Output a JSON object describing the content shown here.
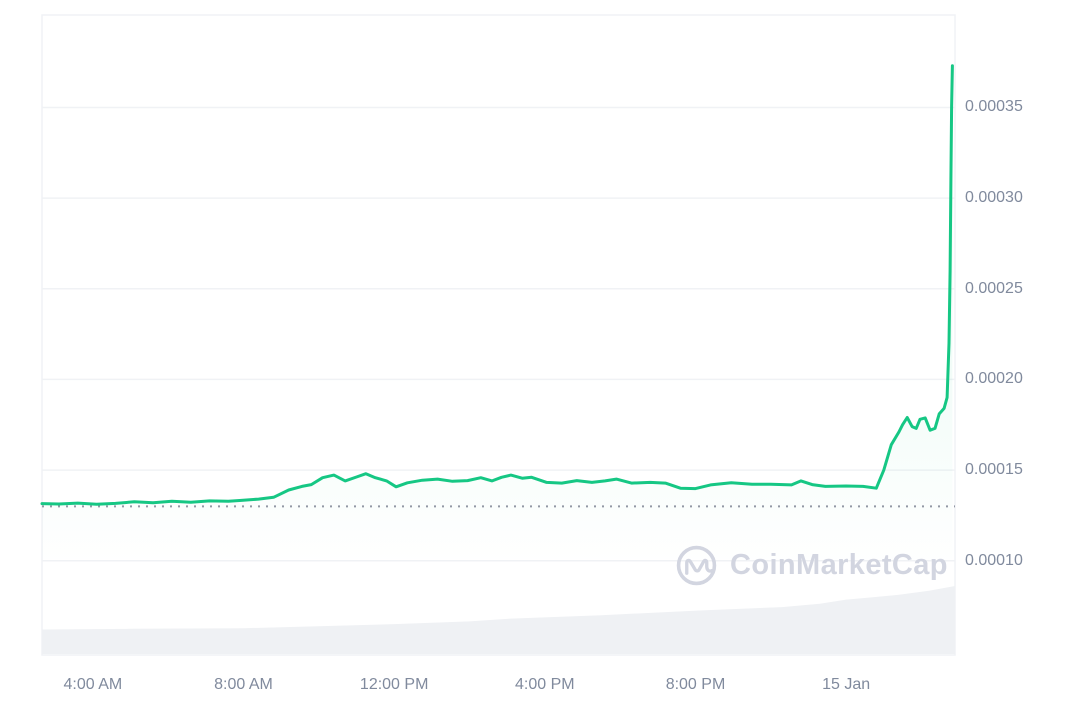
{
  "watermark": {
    "text": "CoinMarketCap"
  },
  "colors": {
    "line": "#16c784",
    "area_fill_top": "rgba(22,199,132,0.14)",
    "grid": "#f0f2f5",
    "axis_text": "#808a9d",
    "volume_fill": "#eff1f4",
    "baseline_dots": "#9298a5",
    "watermark": "#d2d5e0",
    "background": "#ffffff"
  },
  "chart_data": {
    "type": "line",
    "title": "",
    "xlabel": "",
    "ylabel": "",
    "grid": "horizontal-only",
    "legend": "none",
    "x_axis": {
      "start_hour": 2.65,
      "end_hour": 26.89,
      "ticks": [
        {
          "hour": 4,
          "label": "4:00 AM"
        },
        {
          "hour": 8,
          "label": "8:00 AM"
        },
        {
          "hour": 12,
          "label": "12:00 PM"
        },
        {
          "hour": 16,
          "label": "4:00 PM"
        },
        {
          "hour": 20,
          "label": "8:00 PM"
        },
        {
          "hour": 24,
          "label": "15 Jan"
        }
      ]
    },
    "y_axis": {
      "min": 4.8e-05,
      "max": 0.000401,
      "ticks": [
        {
          "value": 0.00035,
          "label": "0.00035"
        },
        {
          "value": 0.0003,
          "label": "0.00030"
        },
        {
          "value": 0.00025,
          "label": "0.00025"
        },
        {
          "value": 0.0002,
          "label": "0.00020"
        },
        {
          "value": 0.00015,
          "label": "0.00015"
        },
        {
          "value": 0.0001,
          "label": "0.00010"
        }
      ]
    },
    "previous_close_baseline": 0.00013,
    "series": [
      {
        "name": "price",
        "points": [
          [
            2.65,
            0.0001315
          ],
          [
            3.1,
            0.0001313
          ],
          [
            3.6,
            0.0001318
          ],
          [
            4.1,
            0.0001312
          ],
          [
            4.6,
            0.0001316
          ],
          [
            5.1,
            0.0001325
          ],
          [
            5.6,
            0.000132
          ],
          [
            6.1,
            0.0001328
          ],
          [
            6.6,
            0.0001322
          ],
          [
            7.1,
            0.000133
          ],
          [
            7.6,
            0.0001328
          ],
          [
            7.9,
            0.0001332
          ],
          [
            8.4,
            0.000134
          ],
          [
            8.8,
            0.000135
          ],
          [
            9.2,
            0.000139
          ],
          [
            9.55,
            0.000141
          ],
          [
            9.8,
            0.000142
          ],
          [
            10.1,
            0.0001458
          ],
          [
            10.4,
            0.0001472
          ],
          [
            10.7,
            0.000144
          ],
          [
            11.0,
            0.0001462
          ],
          [
            11.25,
            0.000148
          ],
          [
            11.5,
            0.0001458
          ],
          [
            11.8,
            0.000144
          ],
          [
            12.05,
            0.0001408
          ],
          [
            12.35,
            0.000143
          ],
          [
            12.75,
            0.0001444
          ],
          [
            13.15,
            0.000145
          ],
          [
            13.55,
            0.0001438
          ],
          [
            13.95,
            0.0001442
          ],
          [
            14.3,
            0.0001458
          ],
          [
            14.6,
            0.000144
          ],
          [
            14.85,
            0.000146
          ],
          [
            15.1,
            0.0001472
          ],
          [
            15.4,
            0.0001455
          ],
          [
            15.65,
            0.000146
          ],
          [
            16.05,
            0.0001432
          ],
          [
            16.45,
            0.0001428
          ],
          [
            16.85,
            0.0001442
          ],
          [
            17.25,
            0.0001432
          ],
          [
            17.6,
            0.000144
          ],
          [
            17.9,
            0.000145
          ],
          [
            18.3,
            0.0001428
          ],
          [
            18.8,
            0.0001432
          ],
          [
            19.2,
            0.0001428
          ],
          [
            19.6,
            0.00014
          ],
          [
            20.0,
            0.0001398
          ],
          [
            20.4,
            0.0001418
          ],
          [
            20.95,
            0.000143
          ],
          [
            21.5,
            0.0001422
          ],
          [
            22.0,
            0.0001422
          ],
          [
            22.55,
            0.0001418
          ],
          [
            22.8,
            0.000144
          ],
          [
            23.1,
            0.000142
          ],
          [
            23.45,
            0.000141
          ],
          [
            24.0,
            0.0001412
          ],
          [
            24.45,
            0.000141
          ],
          [
            24.8,
            0.00014
          ],
          [
            25.0,
            0.00015
          ],
          [
            25.2,
            0.000164
          ],
          [
            25.4,
            0.000171
          ],
          [
            25.5,
            0.000175
          ],
          [
            25.62,
            0.000179
          ],
          [
            25.75,
            0.000174
          ],
          [
            25.86,
            0.000173
          ],
          [
            25.96,
            0.000178
          ],
          [
            26.1,
            0.0001788
          ],
          [
            26.23,
            0.000172
          ],
          [
            26.36,
            0.000173
          ],
          [
            26.47,
            0.000181
          ],
          [
            26.6,
            0.000184
          ],
          [
            26.68,
            0.00019
          ],
          [
            26.73,
            0.00022
          ],
          [
            26.76,
            0.00026
          ],
          [
            26.78,
            0.00031
          ],
          [
            26.8,
            0.00035
          ],
          [
            26.82,
            0.000373
          ]
        ]
      }
    ],
    "volume_area": {
      "note": "relative heights 0-1 of bottom gray volume band",
      "points": [
        [
          2.65,
          0.36
        ],
        [
          5.0,
          0.37
        ],
        [
          8.0,
          0.38
        ],
        [
          9.5,
          0.4
        ],
        [
          12.0,
          0.44
        ],
        [
          14.0,
          0.48
        ],
        [
          15.1,
          0.52
        ],
        [
          17.5,
          0.57
        ],
        [
          20.1,
          0.64
        ],
        [
          22.3,
          0.69
        ],
        [
          23.3,
          0.74
        ],
        [
          24.0,
          0.8
        ],
        [
          24.6,
          0.83
        ],
        [
          25.4,
          0.87
        ],
        [
          26.2,
          0.93
        ],
        [
          26.89,
          1.0
        ]
      ]
    }
  }
}
